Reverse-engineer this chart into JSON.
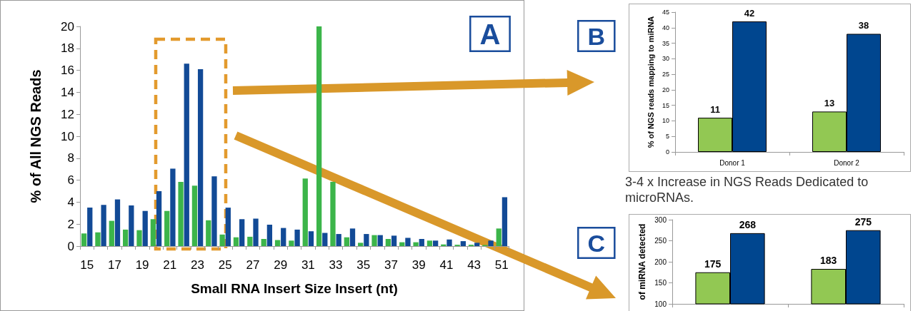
{
  "chart_data": [
    {
      "type": "bar",
      "xlabel": "Small RNA Insert Size Insert (nt)",
      "ylabel": "% of All NGS Reads",
      "categories": [
        "15",
        null,
        "17",
        null,
        "19",
        null,
        "21",
        null,
        "23",
        null,
        "25",
        null,
        "27",
        null,
        "29",
        null,
        "31",
        null,
        "33",
        null,
        "35",
        null,
        "37",
        null,
        "39",
        null,
        "41",
        null,
        "43",
        null,
        "51"
      ],
      "series": [
        {
          "color": "#3cb54a",
          "values": [
            1.15,
            1.25,
            2.3,
            1.5,
            1.45,
            2.45,
            3.2,
            5.85,
            5.5,
            2.35,
            1.05,
            0.8,
            0.85,
            0.65,
            0.55,
            0.5,
            6.15,
            20,
            5.85,
            0.8,
            0.3,
            1.0,
            0.65,
            0.35,
            0.35,
            0.5,
            0.15,
            0.12,
            0.12,
            0.1,
            1.6
          ]
        },
        {
          "color": "#124a96",
          "values": [
            3.5,
            3.75,
            4.25,
            3.7,
            3.2,
            5.0,
            7.05,
            16.6,
            16.1,
            6.35,
            3.5,
            2.45,
            2.5,
            1.95,
            1.65,
            1.5,
            1.35,
            1.2,
            1.1,
            1.6,
            1.1,
            1.0,
            0.95,
            0.75,
            0.65,
            0.5,
            0.6,
            0.45,
            0.3,
            0.5,
            4.45
          ]
        }
      ],
      "ylim": [
        0,
        20
      ],
      "yticks": [
        0,
        2,
        4,
        6,
        8,
        10,
        12,
        14,
        16,
        18,
        20
      ],
      "grid": false,
      "annotations": [
        "A"
      ]
    },
    {
      "type": "bar",
      "ylabel": "% of NGS reads mapping to miRNA",
      "categories": [
        "Donor 1",
        "Donor 2"
      ],
      "series": [
        {
          "color": "#92c853",
          "values": [
            11,
            13
          ]
        },
        {
          "color": "#00468f",
          "values": [
            42,
            38
          ]
        }
      ],
      "ylim": [
        0,
        45
      ],
      "yticks": [
        0,
        5,
        10,
        15,
        20,
        25,
        30,
        35,
        40,
        45
      ],
      "grid": false,
      "data_labels": true,
      "annotations": [
        "B",
        "3-4 x Increase in NGS Reads Dedicated to microRNAs."
      ]
    },
    {
      "type": "bar",
      "ylabel": "of miRNA detected",
      "categories": [
        null,
        null
      ],
      "series": [
        {
          "color": "#92c853",
          "values": [
            175,
            183
          ]
        },
        {
          "color": "#00468f",
          "values": [
            268,
            275
          ]
        }
      ],
      "ylim": [
        100,
        300
      ],
      "yticks": [
        100,
        150,
        200,
        250,
        300
      ],
      "grid": false,
      "data_labels": true,
      "annotations": [
        "C"
      ]
    }
  ]
}
